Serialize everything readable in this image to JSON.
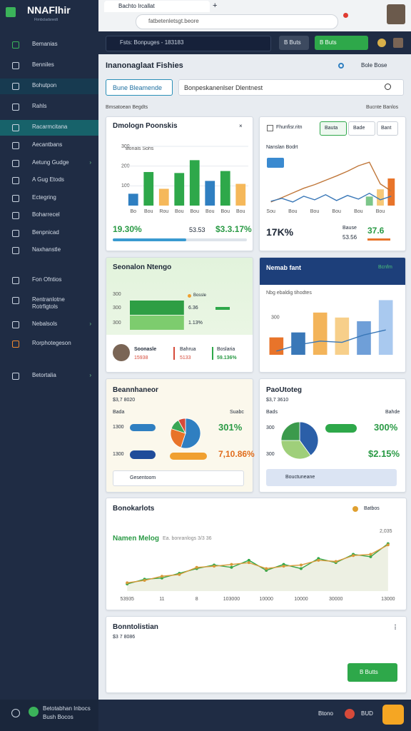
{
  "browser": {
    "tab": "Bachto Ircallat",
    "url": "fatbetenletsgt.beore"
  },
  "brand": {
    "name": "NNAFlhir",
    "tagline": "Ftrnbcladsnedt"
  },
  "sidebar": {
    "items": [
      "Bemanias",
      "Benniles",
      "Bohutpon",
      "Rahls",
      "Racarmcitana",
      "Aecantbans",
      "Aetung Gudge",
      "A Gug Etods",
      "Ectegring",
      "Boharrecel",
      "Benpnicad",
      "Naxhanstle",
      "Fon Ofntios",
      "Rentranlotne Rotrfigtols",
      "Nebalsols",
      "Rorphotegeson",
      "Betortalia"
    ],
    "footer": [
      "Betotabhan Inbocs",
      "Bush Bocos"
    ]
  },
  "topbar": {
    "search": "Fsts: Bonpuges - 183183",
    "buttons": [
      "B Buts",
      "B Buts"
    ]
  },
  "page": {
    "title": "Inanonaglaat Fishies",
    "title_link": "Bole Bose",
    "button": "Bune Bleamende",
    "search": "Bonpeskanenlser Dlentnest",
    "left_note": "Bmsatoean Begdts",
    "right_note": "Bucnte Banlos"
  },
  "cards": [
    {
      "title": "Dmologn Poonskis",
      "note": "Bonals Sohs",
      "stats": [
        "19.30%",
        "53.53",
        "$3.3.17%"
      ]
    },
    {
      "title": "Fhunfisr.ritn",
      "tabs": [
        "Bauta",
        "Bade",
        "Bant"
      ],
      "note": "Nanslan Bodrt",
      "stats": [
        "17K%",
        "Bause",
        "53.56",
        "37.6"
      ]
    },
    {
      "title": "Seonalon Ntengo",
      "legend": "Bossle",
      "labels": [
        "6.36",
        "1.13%"
      ],
      "stats": [
        "Soonasle",
        "15938",
        "Bahrua",
        "5133",
        "Boslaria",
        "59.136%"
      ]
    },
    {
      "title": "Nemab fant",
      "badge": "Bcnfm",
      "note": "Nbg ebaldig tihodtes"
    },
    {
      "title": "Beannhaneor",
      "sub": "$3,7 8020",
      "left": "Bada",
      "right": "Suabc",
      "rows": [
        "1300",
        "1300"
      ],
      "stats": [
        "301%",
        "7,10.86%"
      ],
      "search": "Gesentoom"
    },
    {
      "title": "PaoUtoteg",
      "sub": "$3,7 3610",
      "left": "Bads",
      "right": "Bahde",
      "rows": [
        "300",
        "300"
      ],
      "stats": [
        "300%",
        "$2.15%"
      ],
      "search": "Bouctuneane"
    },
    {
      "title": "Bonokarlots",
      "badge": "Batbos",
      "sub": "Namen Melog",
      "note": "Ea. bonranlogs 3/3 36",
      "corner": "2,035"
    },
    {
      "title": "Bonntolistian",
      "sub": "$3 7 8086",
      "button": "B Butts"
    }
  ],
  "footer": {
    "label": "Btono",
    "code": "BUD"
  },
  "chart_data": [
    {
      "type": "bar",
      "categories": [
        "Bo",
        "Bou",
        "Rou",
        "Bou",
        "Bou",
        "Bou",
        "Bou",
        "Bou"
      ],
      "values": [
        60,
        170,
        85,
        165,
        230,
        125,
        175,
        110
      ],
      "colors": [
        "#2f7fc1",
        "#2ea84a",
        "#f5b85a",
        "#2ea84a",
        "#2ea84a",
        "#2f7fc1",
        "#2ea84a",
        "#f5b85a"
      ],
      "ylim": [
        0,
        300
      ],
      "yticks": [
        100,
        200,
        300
      ],
      "grid": true
    },
    {
      "type": "line",
      "categories": [
        "Sou",
        null,
        "Bou",
        null,
        "Bou",
        null,
        "Bou",
        null,
        "Bou",
        null,
        "Bou",
        null
      ],
      "ylim": [
        0,
        150
      ],
      "series": [
        {
          "type": "bar",
          "color": "#7cc68a",
          "values": [
            null,
            null,
            null,
            null,
            null,
            null,
            null,
            null,
            null,
            25,
            null,
            null
          ]
        },
        {
          "type": "bar",
          "color": "#f6c878",
          "values": [
            null,
            null,
            null,
            null,
            null,
            null,
            null,
            null,
            null,
            null,
            45,
            null
          ]
        },
        {
          "type": "bar",
          "color": "#e8742a",
          "values": [
            null,
            null,
            null,
            null,
            null,
            null,
            null,
            null,
            null,
            null,
            null,
            75
          ]
        },
        {
          "type": "line",
          "color": "#c0773a",
          "values": [
            10,
            22,
            35,
            48,
            58,
            70,
            82,
            95,
            110,
            120,
            60,
            40
          ]
        },
        {
          "type": "line",
          "color": "#3a78b8",
          "values": [
            12,
            20,
            10,
            26,
            16,
            30,
            14,
            28,
            18,
            34,
            16,
            26
          ]
        }
      ]
    },
    {
      "type": "hbar",
      "categories": [
        "300",
        "300",
        "300"
      ],
      "values": [
        null,
        53,
        53
      ],
      "colors": [
        "#2ea84a",
        "#2e9e44",
        "#7dcc6e"
      ],
      "xlim": [
        0,
        100
      ]
    },
    {
      "type": "bar",
      "ylim": [
        0,
        500
      ],
      "yticks": [
        300
      ],
      "series": [
        {
          "type": "bar",
          "colors": [
            "#e8742a",
            "#3a78b8",
            "#f3b45a",
            "#f7cf8a",
            "#6f9fd8",
            "#a9c9ef"
          ],
          "values": [
            140,
            180,
            340,
            300,
            270,
            440
          ]
        },
        {
          "type": "line",
          "color": "#3a78b8",
          "values": [
            30,
            80,
            110,
            100,
            160,
            200
          ]
        }
      ]
    },
    {
      "type": "pie",
      "values": [
        55,
        25,
        12,
        8
      ],
      "colors": [
        "#2f7fc1",
        "#e8742a",
        "#3aa655",
        "#d64a3a"
      ]
    },
    {
      "type": "pie",
      "values": [
        40,
        35,
        25
      ],
      "colors": [
        "#2b5fa8",
        "#9fcf7a",
        "#3b9a4c"
      ]
    },
    {
      "type": "line",
      "categories": [
        "53935",
        null,
        "11",
        null,
        "8",
        null,
        "103000",
        null,
        "10000",
        null,
        "10000",
        null,
        "30000",
        null,
        null,
        "13000"
      ],
      "ylim": [
        0,
        100
      ],
      "area": true,
      "series": [
        {
          "type": "line",
          "color": "#2ea84a",
          "values": [
            12,
            20,
            22,
            30,
            38,
            44,
            40,
            52,
            35,
            45,
            38,
            55,
            48,
            62,
            58,
            80
          ]
        },
        {
          "type": "line",
          "color": "#d79a3a",
          "values": [
            14,
            18,
            25,
            28,
            40,
            42,
            45,
            48,
            38,
            42,
            44,
            52,
            50,
            60,
            62,
            78
          ]
        }
      ]
    }
  ]
}
